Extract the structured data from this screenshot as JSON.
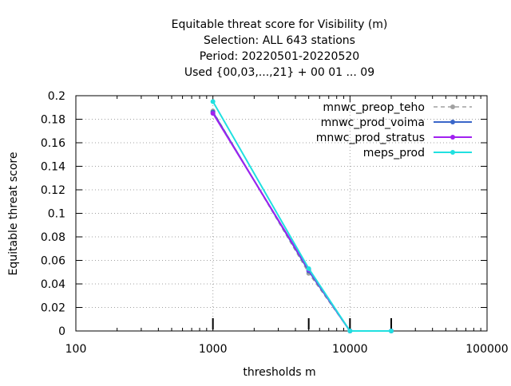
{
  "chart_data": {
    "type": "line",
    "title_lines": [
      "Equitable threat score  for Visibility (m)",
      "Selection: ALL    643 stations",
      "Period: 20220501-20220520",
      "Used {00,03,...,21} + 00 01 ... 09"
    ],
    "xlabel": "thresholds m",
    "ylabel": "Equitable threat score",
    "x_scale": "log",
    "xlim": [
      100,
      100000
    ],
    "ylim": [
      0,
      0.2
    ],
    "x_ticks": [
      100,
      1000,
      10000,
      100000
    ],
    "x_tick_labels": [
      "100",
      "1000",
      "10000",
      "100000"
    ],
    "y_ticks": [
      0,
      0.02,
      0.04,
      0.06,
      0.08,
      0.1,
      0.12,
      0.14,
      0.16,
      0.18,
      0.2
    ],
    "y_tick_labels": [
      "0",
      "0.02",
      "0.04",
      "0.06",
      "0.08",
      "0.1",
      "0.12",
      "0.14",
      "0.16",
      "0.18",
      "0.2"
    ],
    "grid": true,
    "legend_position": "top-right",
    "threshold_markers": [
      1000,
      5000,
      10000,
      20000
    ],
    "series": [
      {
        "name": "mnwc_preop_teho",
        "color": "#a0a0a0",
        "dash": "dashed",
        "x": [
          1000,
          5000,
          10000,
          20000
        ],
        "y": [
          0.187,
          0.049,
          0.0,
          0.0
        ]
      },
      {
        "name": "mnwc_prod_voima",
        "color": "#3a66c9",
        "dash": "solid",
        "x": [
          1000,
          5000,
          10000,
          20000
        ],
        "y": [
          0.186,
          0.051,
          0.0,
          0.0
        ]
      },
      {
        "name": "mnwc_prod_stratus",
        "color": "#a020f0",
        "dash": "solid",
        "x": [
          1000,
          5000,
          10000,
          20000
        ],
        "y": [
          0.185,
          0.052,
          0.0,
          0.0
        ]
      },
      {
        "name": "meps_prod",
        "color": "#20e0e0",
        "dash": "solid",
        "x": [
          1000,
          5000,
          10000,
          20000
        ],
        "y": [
          0.195,
          0.053,
          0.0,
          0.0
        ]
      }
    ]
  }
}
